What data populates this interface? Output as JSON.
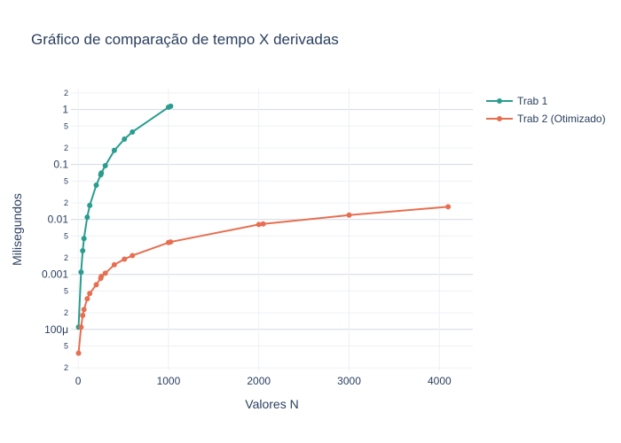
{
  "chart_data": {
    "type": "line",
    "title": "Gráfico de comparação de tempo X derivadas",
    "xlabel": "Valores N",
    "ylabel": "Milisegundos",
    "y_scale": "log",
    "xlim": [
      -80,
      4370
    ],
    "ylim": [
      1.8e-05,
      2.4
    ],
    "x_ticks": [
      0,
      1000,
      2000,
      3000,
      4000
    ],
    "x_tick_labels": [
      "0",
      "1000",
      "2000",
      "3000",
      "4000"
    ],
    "y_ticks": [
      0.0001,
      0.001,
      0.01,
      0.1,
      1
    ],
    "y_tick_labels": [
      "100μ",
      "0.001",
      "0.01",
      "0.1",
      "1"
    ],
    "y_minor_ticks": [
      2e-05,
      5e-05,
      0.0002,
      0.0005,
      0.002,
      0.005,
      0.02,
      0.05,
      0.2,
      0.5,
      2
    ],
    "y_minor_tick_labels": [
      "2",
      "5",
      "2",
      "5",
      "2",
      "5",
      "2",
      "5",
      "2",
      "5",
      "2"
    ],
    "grid": true,
    "legend_position": "top-right",
    "series": [
      {
        "name": "Trab 1",
        "color": "#2a9d8f",
        "x": [
          4,
          32,
          50,
          64,
          100,
          128,
          200,
          250,
          256,
          300,
          400,
          512,
          600,
          1000,
          1024
        ],
        "y": [
          0.00011,
          0.0011,
          0.0027,
          0.0045,
          0.011,
          0.018,
          0.042,
          0.065,
          0.07,
          0.095,
          0.18,
          0.29,
          0.39,
          1.1,
          1.15
        ]
      },
      {
        "name": "Trab 2 (Otimizado)",
        "color": "#e76f51",
        "x": [
          4,
          32,
          50,
          64,
          100,
          128,
          200,
          250,
          256,
          300,
          400,
          512,
          600,
          1000,
          1024,
          2000,
          2048,
          3000,
          4096
        ],
        "y": [
          3.7e-05,
          0.00011,
          0.00018,
          0.00023,
          0.00036,
          0.00045,
          0.00065,
          0.00085,
          0.00092,
          0.00105,
          0.0015,
          0.0019,
          0.0022,
          0.0038,
          0.0039,
          0.0081,
          0.0083,
          0.012,
          0.017
        ]
      }
    ]
  }
}
